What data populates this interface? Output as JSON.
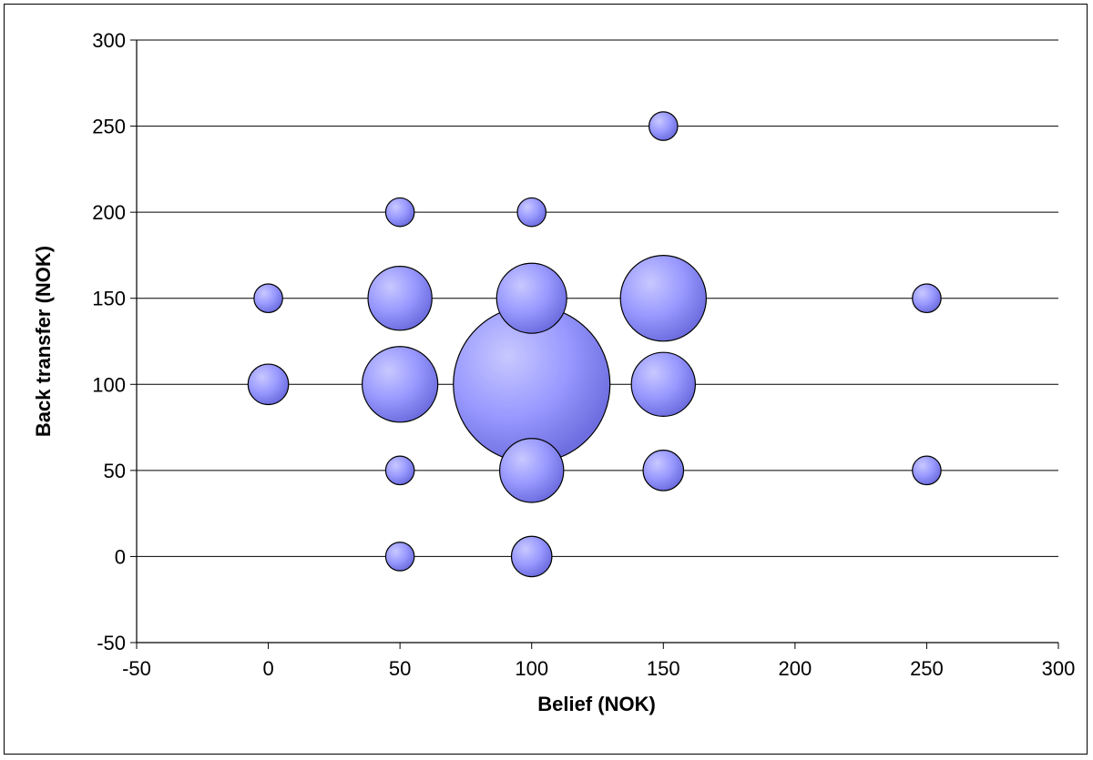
{
  "chart_data": {
    "type": "scatter",
    "variant": "bubble",
    "title": "",
    "xlabel": "Belief (NOK)",
    "ylabel": "Back transfer (NOK)",
    "xlim": [
      -50,
      300
    ],
    "ylim": [
      -50,
      300
    ],
    "xticks": [
      -50,
      0,
      50,
      100,
      150,
      200,
      250,
      300
    ],
    "yticks": [
      -50,
      0,
      50,
      100,
      150,
      200,
      250,
      300
    ],
    "grid": "horizontal",
    "legend": "none",
    "bubble_color": "#9999ff",
    "points": [
      {
        "x": 0,
        "y": 150,
        "size": 1
      },
      {
        "x": 0,
        "y": 100,
        "size": 2
      },
      {
        "x": 50,
        "y": 200,
        "size": 1
      },
      {
        "x": 50,
        "y": 150,
        "size": 5
      },
      {
        "x": 50,
        "y": 100,
        "size": 7
      },
      {
        "x": 50,
        "y": 50,
        "size": 1
      },
      {
        "x": 50,
        "y": 0,
        "size": 1
      },
      {
        "x": 100,
        "y": 200,
        "size": 1
      },
      {
        "x": 100,
        "y": 150,
        "size": 6
      },
      {
        "x": 100,
        "y": 100,
        "size": 30
      },
      {
        "x": 100,
        "y": 50,
        "size": 5
      },
      {
        "x": 100,
        "y": 0,
        "size": 2
      },
      {
        "x": 150,
        "y": 250,
        "size": 1
      },
      {
        "x": 150,
        "y": 150,
        "size": 9
      },
      {
        "x": 150,
        "y": 100,
        "size": 5
      },
      {
        "x": 150,
        "y": 50,
        "size": 2
      },
      {
        "x": 250,
        "y": 150,
        "size": 1
      },
      {
        "x": 250,
        "y": 50,
        "size": 1
      }
    ]
  }
}
